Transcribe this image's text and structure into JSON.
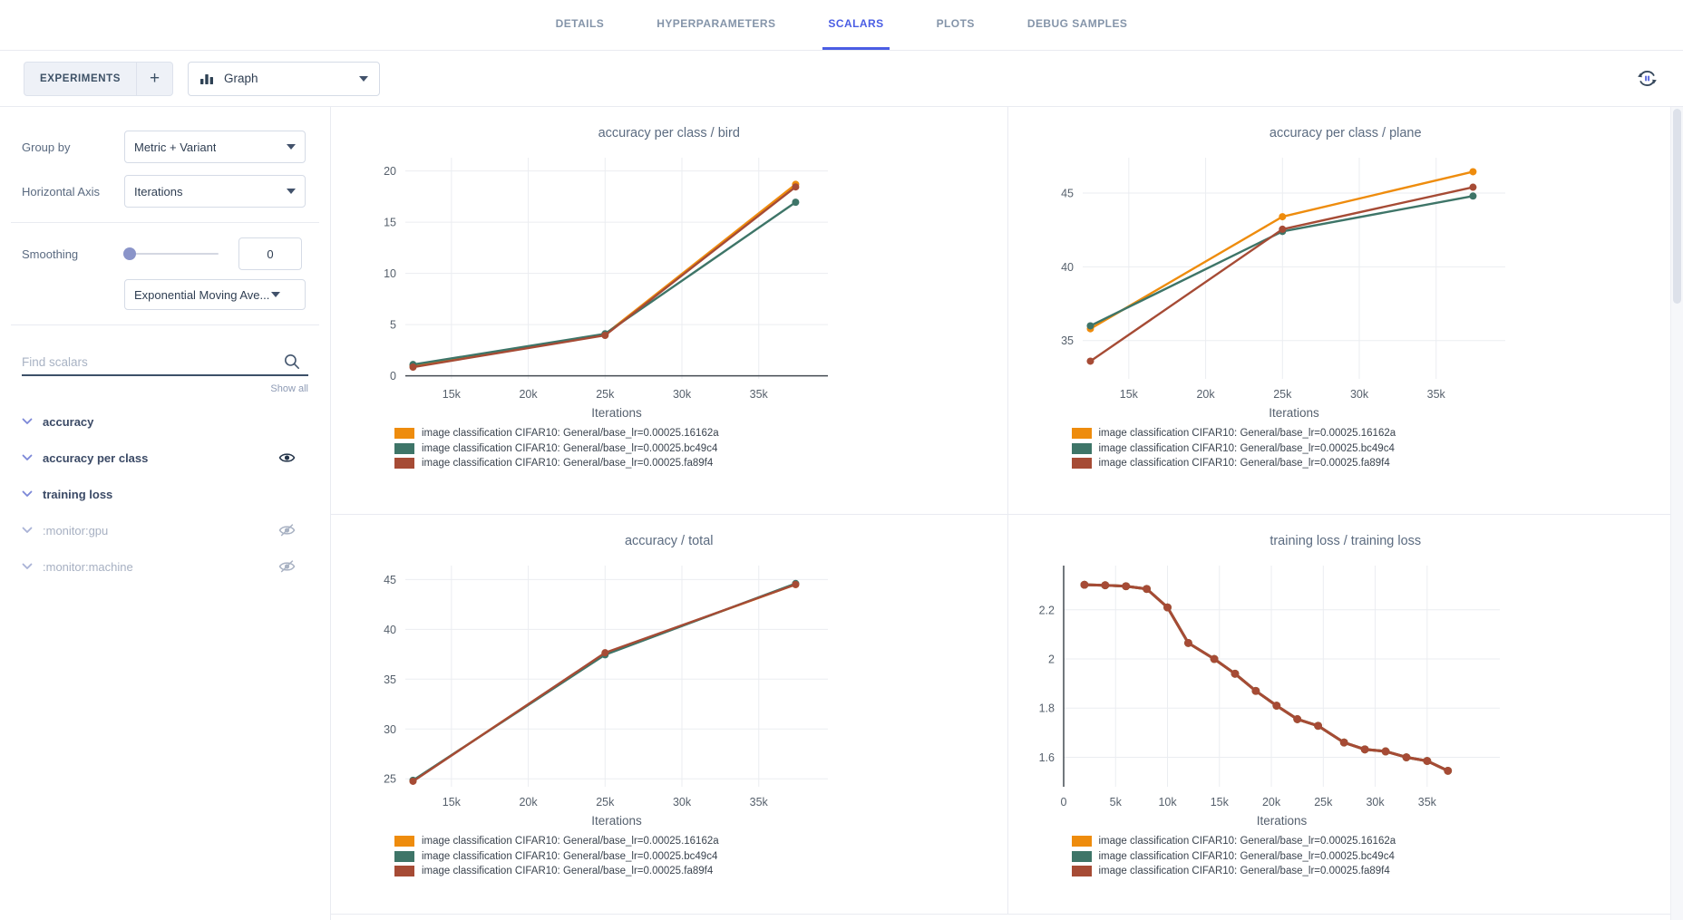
{
  "header": {
    "tabs": [
      {
        "label": "DETAILS",
        "active": false
      },
      {
        "label": "HYPERPARAMETERS",
        "active": false
      },
      {
        "label": "SCALARS",
        "active": true
      },
      {
        "label": "PLOTS",
        "active": false
      },
      {
        "label": "DEBUG SAMPLES",
        "active": false
      }
    ]
  },
  "toolbar": {
    "experiments_label": "EXPERIMENTS",
    "add_label": "+",
    "view_selector_value": "Graph",
    "icons": [
      "bar-chart-icon",
      "caret-down-icon",
      "auto-refresh-pause-icon"
    ]
  },
  "sidebar": {
    "group_by": {
      "label": "Group by",
      "value": "Metric + Variant"
    },
    "horizontal_axis": {
      "label": "Horizontal Axis",
      "value": "Iterations"
    },
    "smoothing": {
      "label": "Smoothing",
      "value": "0",
      "method": "Exponential Moving Ave..."
    },
    "search": {
      "placeholder": "Find scalars"
    },
    "show_all_label": "Show all",
    "metrics": [
      {
        "label": "accuracy",
        "enabled": true,
        "eye": "none"
      },
      {
        "label": "accuracy per class",
        "enabled": true,
        "eye": "visible"
      },
      {
        "label": "training loss",
        "enabled": true,
        "eye": "none"
      },
      {
        "label": ":monitor:gpu",
        "enabled": false,
        "eye": "hidden"
      },
      {
        "label": ":monitor:machine",
        "enabled": false,
        "eye": "hidden"
      }
    ]
  },
  "colors": {
    "accent": "#4a5de4",
    "series_orange": "#ee8c0d",
    "series_green": "#3e7568",
    "series_red": "#a64b35",
    "grid": "#ebedf1",
    "zeroline": "#444b52"
  },
  "chart_data": [
    {
      "type": "line",
      "title": "accuracy per class / bird",
      "xlabel": "Iterations",
      "xlim": [
        12000,
        39500
      ],
      "ylim": [
        -0.3,
        21.3
      ],
      "xticks": [
        15000,
        20000,
        25000,
        30000,
        35000
      ],
      "xtick_labels": [
        "15k",
        "20k",
        "25k",
        "30k",
        "35k"
      ],
      "yticks": [
        0,
        5,
        10,
        15,
        20
      ],
      "ytick_labels": [
        "0",
        "5",
        "10",
        "15",
        "20"
      ],
      "zeroline_y": 0,
      "grid": true,
      "legend_position": "below-left",
      "x": [
        12500,
        25000,
        37400
      ],
      "series": [
        {
          "name": "image classification CIFAR10: General/base_lr=0.00025.16162a",
          "color": "#ee8c0d",
          "values": [
            1.0,
            4.05,
            18.7
          ]
        },
        {
          "name": "image classification CIFAR10: General/base_lr=0.00025.bc49c4",
          "color": "#3e7568",
          "values": [
            1.1,
            4.1,
            16.95
          ]
        },
        {
          "name": "image classification CIFAR10: General/base_lr=0.00025.fa89f4",
          "color": "#a64b35",
          "values": [
            0.85,
            3.95,
            18.45
          ]
        }
      ]
    },
    {
      "type": "line",
      "title": "accuracy per class / plane",
      "xlabel": "Iterations",
      "xlim": [
        12000,
        39500
      ],
      "ylim": [
        32.4,
        47.4
      ],
      "xticks": [
        15000,
        20000,
        25000,
        30000,
        35000
      ],
      "xtick_labels": [
        "15k",
        "20k",
        "25k",
        "30k",
        "35k"
      ],
      "yticks": [
        35,
        40,
        45
      ],
      "ytick_labels": [
        "35",
        "40",
        "45"
      ],
      "grid": true,
      "legend_position": "below-left",
      "x": [
        12500,
        25000,
        37400
      ],
      "series": [
        {
          "name": "image classification CIFAR10: General/base_lr=0.00025.16162a",
          "color": "#ee8c0d",
          "values": [
            35.8,
            43.4,
            46.45
          ]
        },
        {
          "name": "image classification CIFAR10: General/base_lr=0.00025.bc49c4",
          "color": "#3e7568",
          "values": [
            36.0,
            42.4,
            44.8
          ]
        },
        {
          "name": "image classification CIFAR10: General/base_lr=0.00025.fa89f4",
          "color": "#a64b35",
          "values": [
            33.6,
            42.55,
            45.4
          ]
        }
      ]
    },
    {
      "type": "line",
      "title": "accuracy / total",
      "xlabel": "Iterations",
      "xlim": [
        12000,
        39500
      ],
      "ylim": [
        24.2,
        46.4
      ],
      "xticks": [
        15000,
        20000,
        25000,
        30000,
        35000
      ],
      "xtick_labels": [
        "15k",
        "20k",
        "25k",
        "30k",
        "35k"
      ],
      "yticks": [
        25,
        30,
        35,
        40,
        45
      ],
      "ytick_labels": [
        "25",
        "30",
        "35",
        "40",
        "45"
      ],
      "grid": true,
      "legend_position": "below-left",
      "x": [
        12500,
        25000,
        37400
      ],
      "series": [
        {
          "name": "image classification CIFAR10: General/base_lr=0.00025.16162a",
          "color": "#ee8c0d",
          "values": [
            24.8,
            37.6,
            44.5
          ]
        },
        {
          "name": "image classification CIFAR10: General/base_lr=0.00025.bc49c4",
          "color": "#3e7568",
          "values": [
            24.85,
            37.45,
            44.6
          ]
        },
        {
          "name": "image classification CIFAR10: General/base_lr=0.00025.fa89f4",
          "color": "#a64b35",
          "values": [
            24.75,
            37.65,
            44.5
          ]
        }
      ]
    },
    {
      "type": "line",
      "title": "training loss / training loss",
      "xlabel": "Iterations",
      "xlim": [
        0,
        42000
      ],
      "ylim": [
        1.48,
        2.38
      ],
      "xticks": [
        0,
        5000,
        10000,
        15000,
        20000,
        25000,
        30000,
        35000
      ],
      "xtick_labels": [
        "0",
        "5k",
        "10k",
        "15k",
        "20k",
        "25k",
        "30k",
        "35k"
      ],
      "yticks": [
        1.6,
        1.8,
        2.0,
        2.2
      ],
      "ytick_labels": [
        "1.6",
        "1.8",
        "2",
        "2.2"
      ],
      "zeroline_x": 0,
      "grid": true,
      "legend_position": "below-left",
      "x": [
        2000,
        4000,
        6000,
        8000,
        10000,
        12000,
        14500,
        16500,
        18500,
        20500,
        22500,
        24500,
        27000,
        29000,
        31000,
        33000,
        35000,
        37000
      ],
      "series": [
        {
          "name": "image classification CIFAR10: General/base_lr=0.00025.16162a",
          "color": "#ee8c0d",
          "values": [
            2.302,
            2.3,
            2.296,
            2.285,
            2.21,
            2.065,
            2.0,
            1.94,
            1.87,
            1.81,
            1.755,
            1.728,
            1.66,
            1.632,
            1.624,
            1.6,
            1.585,
            1.545
          ]
        },
        {
          "name": "image classification CIFAR10: General/base_lr=0.00025.bc49c4",
          "color": "#3e7568",
          "values": [
            2.302,
            2.3,
            2.296,
            2.285,
            2.21,
            2.065,
            2.0,
            1.94,
            1.87,
            1.81,
            1.755,
            1.728,
            1.66,
            1.632,
            1.624,
            1.6,
            1.585,
            1.545
          ]
        },
        {
          "name": "image classification CIFAR10: General/base_lr=0.00025.fa89f4",
          "color": "#a64b35",
          "values": [
            2.302,
            2.3,
            2.296,
            2.285,
            2.21,
            2.065,
            2.0,
            1.94,
            1.87,
            1.81,
            1.755,
            1.728,
            1.66,
            1.632,
            1.624,
            1.6,
            1.585,
            1.545
          ]
        }
      ]
    }
  ]
}
